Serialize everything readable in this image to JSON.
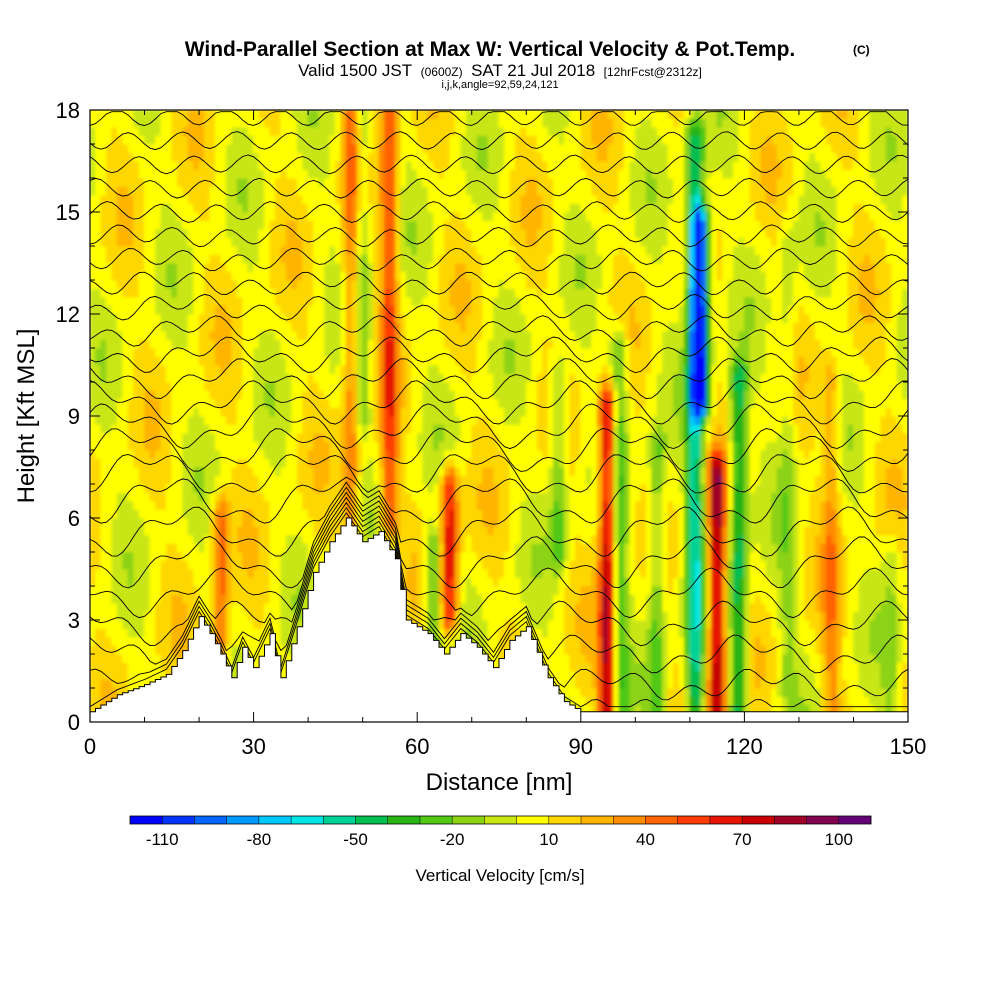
{
  "header": {
    "title": "Wind-Parallel Section at Max W: Vertical Velocity & Pot.Temp.",
    "title_mark": "(C)",
    "valid_a": "Valid 1500 JST",
    "valid_zulu": "(0600Z)",
    "valid_b": "SAT 21 Jul 2018",
    "forecast": "[12hrFcst@2312z]",
    "indices": "i,j,k,angle=92,59,24,121"
  },
  "chart_data": {
    "type": "heatmap",
    "title": "Wind-Parallel Section at Max W: Vertical Velocity & Pot.Temp.",
    "xlabel": "Distance [nm]",
    "ylabel": "Height [Kft MSL]",
    "xlim": [
      0,
      150
    ],
    "ylim": [
      0,
      18
    ],
    "x_ticks": [
      "0",
      "30",
      "60",
      "90",
      "120",
      "150"
    ],
    "y_ticks": [
      "0",
      "3",
      "6",
      "9",
      "12",
      "15",
      "18"
    ],
    "x_tick_values": [
      0,
      30,
      60,
      90,
      120,
      150
    ],
    "y_tick_values": [
      0,
      3,
      6,
      9,
      12,
      15,
      18
    ],
    "colorbar": {
      "label": "Vertical Velocity [cm/s]",
      "range": [
        -120,
        110
      ],
      "step": 10,
      "tick_labels": [
        "-110",
        "-80",
        "-50",
        "-20",
        "10",
        "40",
        "70",
        "100"
      ],
      "tick_values": [
        -110,
        -80,
        -50,
        -20,
        10,
        40,
        70,
        100
      ],
      "colors": [
        "#0000ff",
        "#0033ff",
        "#0066ff",
        "#0099ff",
        "#00c8ff",
        "#00e6e6",
        "#00d296",
        "#00be50",
        "#28b414",
        "#50c814",
        "#8cd214",
        "#c8e614",
        "#ffff00",
        "#ffd700",
        "#ffb400",
        "#ff8c00",
        "#ff6400",
        "#ff3c00",
        "#e61400",
        "#c80000",
        "#a00028",
        "#820050",
        "#640078"
      ]
    },
    "velocity_features_cm_per_s": [
      {
        "x": 95,
        "bottom": 0.3,
        "top": 9.2,
        "w": 80
      },
      {
        "x": 115,
        "bottom": 0.3,
        "top": 7.2,
        "w": 80
      },
      {
        "x": 66,
        "bottom": 3.2,
        "top": 6.8,
        "w": 65
      },
      {
        "x": 112,
        "bottom": 9.5,
        "top": 14.5,
        "w": -100
      },
      {
        "x": 111,
        "bottom": 0.3,
        "top": 17,
        "w": -60
      },
      {
        "x": 119,
        "bottom": 0.3,
        "top": 10,
        "w": -55
      },
      {
        "x": 97,
        "bottom": 0.3,
        "top": 11,
        "w": -35
      },
      {
        "x": 104,
        "bottom": 0.3,
        "top": 8,
        "w": -30
      },
      {
        "x": 55,
        "bottom": 6,
        "top": 18,
        "w": 45
      },
      {
        "x": 48,
        "bottom": 6,
        "top": 18,
        "w": 35
      },
      {
        "x": 24,
        "bottom": 2,
        "top": 6,
        "w": 40
      },
      {
        "x": 50,
        "bottom": 9,
        "top": 18,
        "w": -25
      },
      {
        "x": 86,
        "bottom": 5,
        "top": 10,
        "w": -30
      },
      {
        "x": 63,
        "bottom": 2.5,
        "top": 5,
        "w": -35
      },
      {
        "x": 136,
        "bottom": 0.3,
        "top": 10,
        "w": 25
      },
      {
        "x": 128,
        "bottom": 1,
        "top": 14,
        "w": -15
      },
      {
        "x": 147,
        "bottom": 0.3,
        "top": 5,
        "w": -15
      }
    ],
    "terrain_kft": [
      {
        "x": 0,
        "h": 0.3
      },
      {
        "x": 5,
        "h": 0.8
      },
      {
        "x": 10,
        "h": 1.1
      },
      {
        "x": 14,
        "h": 1.4
      },
      {
        "x": 17,
        "h": 2.1
      },
      {
        "x": 20,
        "h": 3.1
      },
      {
        "x": 22,
        "h": 2.6
      },
      {
        "x": 24,
        "h": 2.0
      },
      {
        "x": 26,
        "h": 1.3
      },
      {
        "x": 28,
        "h": 2.2
      },
      {
        "x": 30,
        "h": 1.6
      },
      {
        "x": 33,
        "h": 2.6
      },
      {
        "x": 35,
        "h": 1.3
      },
      {
        "x": 38,
        "h": 2.8
      },
      {
        "x": 41,
        "h": 4.4
      },
      {
        "x": 44,
        "h": 5.3
      },
      {
        "x": 47,
        "h": 6.0
      },
      {
        "x": 50,
        "h": 5.3
      },
      {
        "x": 53,
        "h": 5.6
      },
      {
        "x": 56,
        "h": 4.8
      },
      {
        "x": 58,
        "h": 3.0
      },
      {
        "x": 62,
        "h": 2.6
      },
      {
        "x": 65,
        "h": 2.0
      },
      {
        "x": 68,
        "h": 2.6
      },
      {
        "x": 71,
        "h": 2.2
      },
      {
        "x": 74,
        "h": 1.6
      },
      {
        "x": 77,
        "h": 2.4
      },
      {
        "x": 80,
        "h": 2.8
      },
      {
        "x": 84,
        "h": 1.3
      },
      {
        "x": 87,
        "h": 0.6
      },
      {
        "x": 90,
        "h": 0.3
      },
      {
        "x": 150,
        "h": 0.3
      }
    ],
    "isentrope_base_kft": [
      0.3,
      1.1,
      2.0,
      2.9,
      3.8,
      4.7,
      5.6,
      6.5,
      7.3,
      8.0,
      8.7,
      9.4,
      10.1,
      10.8,
      11.5,
      12.2,
      12.9,
      13.6,
      14.3,
      15.0,
      15.7,
      16.4,
      17.1,
      17.8
    ]
  }
}
